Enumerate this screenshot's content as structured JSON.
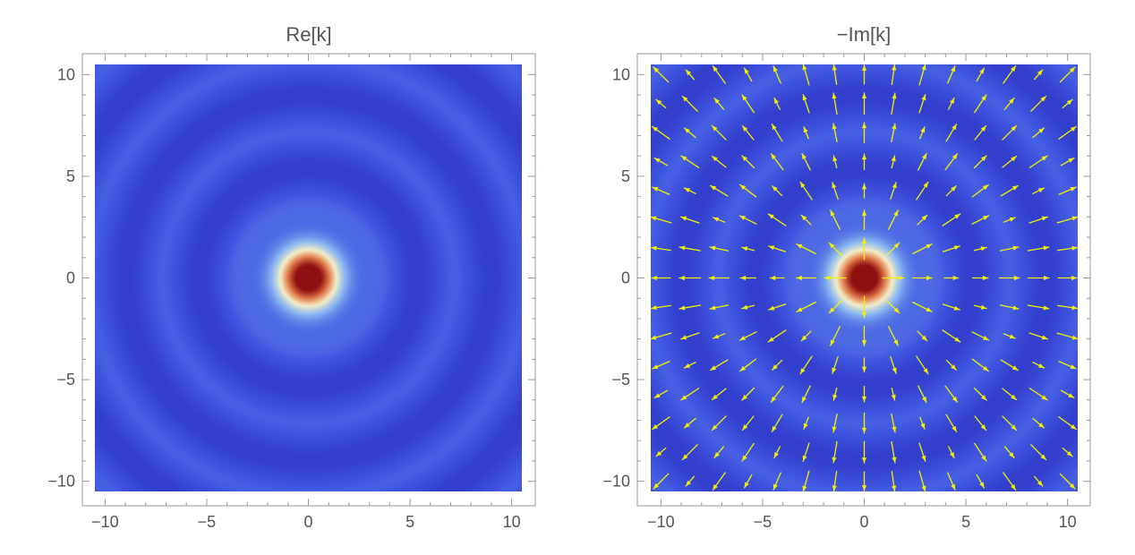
{
  "chart_data": [
    {
      "type": "heatmap",
      "title": "Re[k]",
      "xlabel": "",
      "ylabel": "",
      "xlim": [
        -10.5,
        10.5
      ],
      "ylim": [
        -10.5,
        10.5
      ],
      "x_ticks": [
        -10,
        -5,
        0,
        5,
        10
      ],
      "y_ticks": [
        -10,
        -5,
        0,
        5,
        10
      ],
      "x_tick_labels": [
        "−10",
        "−5",
        "0",
        "5",
        "10"
      ],
      "y_tick_labels": [
        "−10",
        "−5",
        "0",
        "5",
        "10"
      ],
      "field": "radially symmetric damped oscillation, maximum at origin",
      "colormap": [
        "#2a2fbf",
        "#3f55e0",
        "#86b4f2",
        "#f5f0c8",
        "#e07a4a",
        "#8e1010"
      ],
      "grid": false
    },
    {
      "type": "heatmap",
      "title": "−Im[k]",
      "xlabel": "",
      "ylabel": "",
      "xlim": [
        -10.5,
        10.5
      ],
      "ylim": [
        -10.5,
        10.5
      ],
      "x_ticks": [
        -10,
        -5,
        0,
        5,
        10
      ],
      "y_ticks": [
        -10,
        -5,
        0,
        5,
        10
      ],
      "x_tick_labels": [
        "−10",
        "−5",
        "0",
        "5",
        "10"
      ],
      "y_tick_labels": [
        "−10",
        "−5",
        "0",
        "5",
        "10"
      ],
      "field": "radially symmetric damped oscillation, maximum at origin",
      "overlay": "radial vector field",
      "vector_color": "#f2f200",
      "vector_grid": {
        "min": -10,
        "max": 10,
        "count": 15
      },
      "colormap": [
        "#2a2fbf",
        "#3f55e0",
        "#86b4f2",
        "#f5f0c8",
        "#e07a4a",
        "#8e1010"
      ],
      "grid": false
    }
  ]
}
